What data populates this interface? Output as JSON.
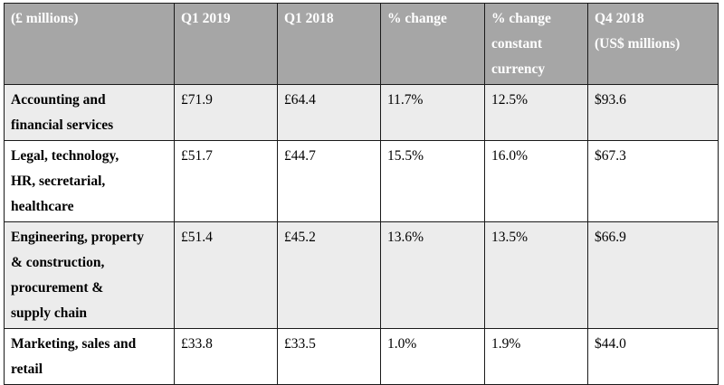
{
  "table": {
    "headers": [
      "(£ millions)",
      "Q1 2019",
      "Q1 2018",
      "% change",
      "% change\nconstant\ncurrency",
      "Q4 2018\n(US$ millions)"
    ],
    "rows": [
      {
        "label": "Accounting and\nfinancial services",
        "values": [
          "£71.9",
          "£64.4",
          "11.7%",
          "12.5%",
          "$93.6"
        ]
      },
      {
        "label": "Legal, technology,\nHR, secretarial,\nhealthcare",
        "values": [
          "£51.7",
          "£44.7",
          "15.5%",
          "16.0%",
          "$67.3"
        ]
      },
      {
        "label": "Engineering, property\n& construction,\nprocurement &\nsupply chain",
        "values": [
          "£51.4",
          "£45.2",
          "13.6%",
          "13.5%",
          "$66.9"
        ]
      },
      {
        "label": "Marketing, sales and\nretail",
        "values": [
          "£33.8",
          "£33.5",
          "1.0%",
          "1.9%",
          "$44.0"
        ]
      }
    ]
  }
}
